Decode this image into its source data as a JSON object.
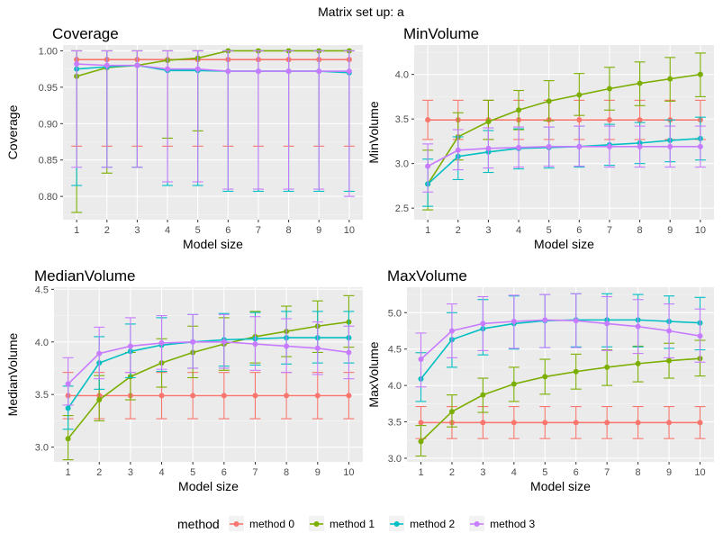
{
  "title": "Matrix set up: a",
  "legend": {
    "title": "method",
    "position": "bottom",
    "items": [
      {
        "label": "method 0",
        "color": "#F8766D"
      },
      {
        "label": "method 1",
        "color": "#7CAE00"
      },
      {
        "label": "method 2",
        "color": "#00BFC4"
      },
      {
        "label": "method 3",
        "color": "#C77CFF"
      }
    ]
  },
  "chart_data": [
    {
      "type": "line",
      "title": "Coverage",
      "xlabel": "Model size",
      "ylabel": "Coverage",
      "x": [
        1,
        2,
        3,
        4,
        5,
        6,
        7,
        8,
        9,
        10
      ],
      "xlim": [
        0.55,
        10.45
      ],
      "ylim": [
        0.768,
        1.008
      ],
      "yticks": [
        0.8,
        0.85,
        0.9,
        0.95,
        1.0
      ],
      "ytick_labels": [
        "0.80",
        "0.85",
        "0.90",
        "0.95",
        "1.00"
      ],
      "grid": true,
      "series": [
        {
          "name": "method 0",
          "values": [
            0.988,
            0.988,
            0.988,
            0.988,
            0.988,
            0.988,
            0.988,
            0.988,
            0.988,
            0.988
          ],
          "lower": [
            0.869,
            0.869,
            0.869,
            0.869,
            0.869,
            0.869,
            0.869,
            0.869,
            0.869,
            0.869
          ],
          "upper": [
            1.0,
            1.0,
            1.0,
            1.0,
            1.0,
            1.0,
            1.0,
            1.0,
            1.0,
            1.0
          ]
        },
        {
          "name": "method 1",
          "values": [
            0.965,
            0.977,
            0.98,
            0.987,
            0.99,
            1.0,
            1.0,
            1.0,
            1.0,
            1.0
          ],
          "lower": [
            0.778,
            0.832,
            0.84,
            0.88,
            0.89,
            1.0,
            1.0,
            1.0,
            1.0,
            1.0
          ],
          "upper": [
            1.0,
            1.0,
            1.0,
            1.0,
            1.0,
            1.0,
            1.0,
            1.0,
            1.0,
            1.0
          ]
        },
        {
          "name": "method 2",
          "values": [
            0.975,
            0.978,
            0.98,
            0.973,
            0.973,
            0.972,
            0.972,
            0.972,
            0.972,
            0.97
          ],
          "lower": [
            0.815,
            0.84,
            0.84,
            0.815,
            0.815,
            0.807,
            0.807,
            0.807,
            0.807,
            0.807
          ],
          "upper": [
            1.0,
            1.0,
            1.0,
            1.0,
            1.0,
            1.0,
            1.0,
            1.0,
            1.0,
            1.0
          ]
        },
        {
          "name": "method 3",
          "values": [
            0.982,
            0.98,
            0.98,
            0.975,
            0.975,
            0.972,
            0.972,
            0.972,
            0.972,
            0.972
          ],
          "lower": [
            0.84,
            0.84,
            0.84,
            0.82,
            0.82,
            0.81,
            0.81,
            0.81,
            0.81,
            0.8
          ],
          "upper": [
            1.0,
            1.0,
            1.0,
            1.0,
            1.0,
            1.0,
            1.0,
            1.0,
            1.0,
            1.0
          ]
        }
      ]
    },
    {
      "type": "line",
      "title": "MinVolume",
      "xlabel": "Model size",
      "ylabel": "MinVolume",
      "x": [
        1,
        2,
        3,
        4,
        5,
        6,
        7,
        8,
        9,
        10
      ],
      "xlim": [
        0.55,
        10.45
      ],
      "ylim": [
        2.37,
        4.33
      ],
      "yticks": [
        2.5,
        3.0,
        3.5,
        4.0
      ],
      "ytick_labels": [
        "2.5",
        "3.0",
        "3.5",
        "4.0"
      ],
      "grid": true,
      "series": [
        {
          "name": "method 0",
          "values": [
            3.49,
            3.49,
            3.49,
            3.49,
            3.49,
            3.49,
            3.49,
            3.49,
            3.49,
            3.49
          ],
          "lower": [
            3.27,
            3.27,
            3.27,
            3.27,
            3.27,
            3.27,
            3.27,
            3.27,
            3.27,
            3.27
          ],
          "upper": [
            3.71,
            3.71,
            3.71,
            3.71,
            3.71,
            3.71,
            3.71,
            3.71,
            3.71,
            3.71
          ]
        },
        {
          "name": "method 1",
          "values": [
            2.77,
            3.3,
            3.47,
            3.6,
            3.7,
            3.77,
            3.84,
            3.9,
            3.95,
            4.0
          ],
          "lower": [
            2.48,
            3.04,
            3.27,
            3.38,
            3.48,
            3.54,
            3.6,
            3.65,
            3.7,
            3.75
          ],
          "upper": [
            3.15,
            3.57,
            3.71,
            3.82,
            3.93,
            4.01,
            4.08,
            4.14,
            4.19,
            4.24
          ]
        },
        {
          "name": "method 2",
          "values": [
            2.77,
            3.08,
            3.13,
            3.17,
            3.18,
            3.19,
            3.21,
            3.23,
            3.26,
            3.28
          ],
          "lower": [
            2.52,
            2.82,
            2.9,
            2.94,
            2.95,
            2.96,
            2.98,
            3.0,
            3.02,
            3.04
          ],
          "upper": [
            3.05,
            3.3,
            3.37,
            3.39,
            3.41,
            3.42,
            3.44,
            3.46,
            3.49,
            3.52
          ]
        },
        {
          "name": "method 3",
          "values": [
            2.97,
            3.15,
            3.17,
            3.18,
            3.19,
            3.19,
            3.19,
            3.19,
            3.19,
            3.19
          ],
          "lower": [
            2.68,
            2.93,
            2.95,
            2.96,
            2.97,
            2.97,
            2.96,
            2.96,
            2.96,
            2.96
          ],
          "upper": [
            3.22,
            3.38,
            3.4,
            3.41,
            3.41,
            3.42,
            3.42,
            3.42,
            3.42,
            3.42
          ]
        }
      ]
    },
    {
      "type": "line",
      "title": "MedianVolume",
      "xlabel": "Model size",
      "ylabel": "MedianVolume",
      "x": [
        1,
        2,
        3,
        4,
        5,
        6,
        7,
        8,
        9,
        10
      ],
      "xlim": [
        0.55,
        10.45
      ],
      "ylim": [
        2.86,
        4.52
      ],
      "yticks": [
        3.0,
        3.5,
        4.0,
        4.5
      ],
      "ytick_labels": [
        "3.0",
        "3.5",
        "4.0",
        "4.5"
      ],
      "grid": true,
      "series": [
        {
          "name": "method 0",
          "values": [
            3.49,
            3.49,
            3.49,
            3.49,
            3.49,
            3.49,
            3.49,
            3.49,
            3.49,
            3.49
          ],
          "lower": [
            3.27,
            3.27,
            3.27,
            3.27,
            3.27,
            3.27,
            3.27,
            3.27,
            3.27,
            3.27
          ],
          "upper": [
            3.71,
            3.71,
            3.71,
            3.71,
            3.71,
            3.71,
            3.71,
            3.71,
            3.71,
            3.71
          ]
        },
        {
          "name": "method 1",
          "values": [
            3.08,
            3.45,
            3.67,
            3.8,
            3.9,
            3.98,
            4.05,
            4.1,
            4.15,
            4.19
          ],
          "lower": [
            2.88,
            3.25,
            3.45,
            3.57,
            3.66,
            3.73,
            3.8,
            3.86,
            3.9,
            3.95
          ],
          "upper": [
            3.3,
            3.68,
            3.9,
            4.03,
            4.15,
            4.23,
            4.29,
            4.34,
            4.39,
            4.44
          ]
        },
        {
          "name": "method 2",
          "values": [
            3.37,
            3.8,
            3.91,
            3.97,
            4.0,
            4.02,
            4.03,
            4.04,
            4.04,
            4.04
          ],
          "lower": [
            3.17,
            3.55,
            3.66,
            3.72,
            3.75,
            3.77,
            3.78,
            3.79,
            3.8,
            3.8
          ],
          "upper": [
            3.58,
            4.05,
            4.17,
            4.23,
            4.26,
            4.27,
            4.28,
            4.29,
            4.29,
            4.29
          ]
        },
        {
          "name": "method 3",
          "values": [
            3.6,
            3.89,
            3.96,
            3.99,
            4.0,
            4.0,
            3.98,
            3.96,
            3.94,
            3.9
          ],
          "lower": [
            3.4,
            3.65,
            3.71,
            3.74,
            3.75,
            3.75,
            3.73,
            3.71,
            3.69,
            3.65
          ],
          "upper": [
            3.85,
            4.14,
            4.23,
            4.25,
            4.26,
            4.26,
            4.24,
            4.22,
            4.19,
            4.15
          ]
        }
      ]
    },
    {
      "type": "line",
      "title": "MaxVolume",
      "xlabel": "Model size",
      "ylabel": "MaxVolume",
      "x": [
        1,
        2,
        3,
        4,
        5,
        6,
        7,
        8,
        9,
        10
      ],
      "xlim": [
        0.55,
        10.45
      ],
      "ylim": [
        2.95,
        5.35
      ],
      "yticks": [
        3.0,
        3.5,
        4.0,
        4.5,
        5.0
      ],
      "ytick_labels": [
        "3.0",
        "3.5",
        "4.0",
        "4.5",
        "5.0"
      ],
      "grid": true,
      "series": [
        {
          "name": "method 0",
          "values": [
            3.49,
            3.49,
            3.49,
            3.49,
            3.49,
            3.49,
            3.49,
            3.49,
            3.49,
            3.49
          ],
          "lower": [
            3.27,
            3.27,
            3.27,
            3.27,
            3.27,
            3.27,
            3.27,
            3.27,
            3.27,
            3.27
          ],
          "upper": [
            3.71,
            3.71,
            3.71,
            3.71,
            3.71,
            3.71,
            3.71,
            3.71,
            3.71,
            3.71
          ]
        },
        {
          "name": "method 1",
          "values": [
            3.23,
            3.64,
            3.87,
            4.02,
            4.12,
            4.19,
            4.25,
            4.3,
            4.34,
            4.37
          ],
          "lower": [
            3.03,
            3.43,
            3.63,
            3.78,
            3.88,
            3.95,
            4.0,
            4.05,
            4.1,
            4.13
          ],
          "upper": [
            3.45,
            3.87,
            4.1,
            4.25,
            4.36,
            4.43,
            4.49,
            4.54,
            4.58,
            4.62
          ]
        },
        {
          "name": "method 2",
          "values": [
            4.09,
            4.63,
            4.78,
            4.85,
            4.89,
            4.9,
            4.9,
            4.9,
            4.88,
            4.86
          ],
          "lower": [
            3.78,
            4.25,
            4.42,
            4.5,
            4.52,
            4.53,
            4.53,
            4.53,
            4.51,
            4.49
          ],
          "upper": [
            4.45,
            5.0,
            5.18,
            5.23,
            5.25,
            5.26,
            5.26,
            5.25,
            5.23,
            5.21
          ]
        },
        {
          "name": "method 3",
          "values": [
            4.36,
            4.75,
            4.85,
            4.88,
            4.9,
            4.89,
            4.85,
            4.81,
            4.75,
            4.68
          ],
          "lower": [
            3.98,
            4.38,
            4.48,
            4.51,
            4.52,
            4.52,
            4.48,
            4.44,
            4.38,
            4.32
          ],
          "upper": [
            4.72,
            5.12,
            5.22,
            5.24,
            5.25,
            5.26,
            5.22,
            5.18,
            5.12,
            5.05
          ]
        }
      ]
    }
  ]
}
